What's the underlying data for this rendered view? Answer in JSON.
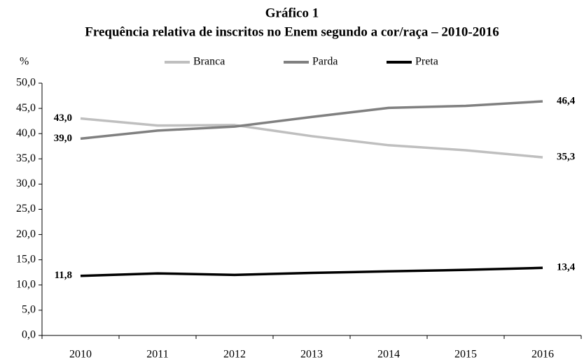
{
  "chart_data": {
    "type": "line",
    "title": "Gráfico 1",
    "subtitle": "Frequência relativa de inscritos no Enem segundo a cor/raça – 2010-2016",
    "ylabel": "%",
    "categories": [
      "2010",
      "2011",
      "2012",
      "2013",
      "2014",
      "2015",
      "2016"
    ],
    "series": [
      {
        "name": "Branca",
        "color": "#bfbfbf",
        "values": [
          43.0,
          41.6,
          41.7,
          39.5,
          37.7,
          36.7,
          35.3
        ],
        "value_labels": [
          "43,0",
          null,
          null,
          null,
          null,
          null,
          "35,3"
        ]
      },
      {
        "name": "Parda",
        "color": "#808080",
        "values": [
          39.0,
          40.6,
          41.4,
          43.3,
          45.1,
          45.5,
          46.4
        ],
        "value_labels": [
          "39,0",
          null,
          null,
          null,
          null,
          null,
          "46,4"
        ]
      },
      {
        "name": "Preta",
        "color": "#000000",
        "values": [
          11.8,
          12.3,
          12.0,
          12.4,
          12.7,
          13.0,
          13.4
        ],
        "value_labels": [
          "11,8",
          null,
          null,
          null,
          null,
          null,
          "13,4"
        ]
      }
    ],
    "ylim": [
      0,
      50
    ],
    "yticks": [
      {
        "value": 0,
        "label": "0,0"
      },
      {
        "value": 5,
        "label": "5,0"
      },
      {
        "value": 10,
        "label": "10,0"
      },
      {
        "value": 15,
        "label": "15,0"
      },
      {
        "value": 20,
        "label": "20,0"
      },
      {
        "value": 25,
        "label": "25,0"
      },
      {
        "value": 30,
        "label": "30,0"
      },
      {
        "value": 35,
        "label": "35,0"
      },
      {
        "value": 40,
        "label": "40,0"
      },
      {
        "value": 45,
        "label": "45,0"
      },
      {
        "value": 50,
        "label": "50,0"
      }
    ],
    "legend": "top"
  }
}
